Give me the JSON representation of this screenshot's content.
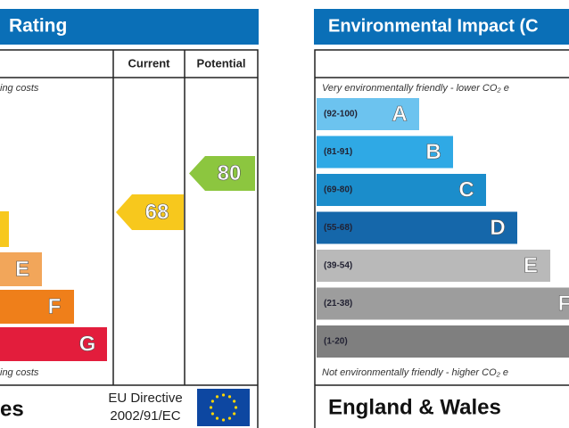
{
  "energy_panel": {
    "title": "Rating",
    "headers": [
      "Current",
      "Potential"
    ],
    "top_note": "ing costs",
    "bands": [
      {
        "letter": "E"
      },
      {
        "letter": "F"
      },
      {
        "letter": "G"
      }
    ],
    "current": 68,
    "potential": 80,
    "bottom_note": "ing costs",
    "region": "es",
    "directive": [
      "EU Directive",
      "2002/91/EC"
    ]
  },
  "environment_panel": {
    "title": "Environmental Impact (C",
    "top_note": "Very environmentally friendly - lower CO₂ e",
    "bands": [
      {
        "range": "(92-100)",
        "letter": "A"
      },
      {
        "range": "(81-91)",
        "letter": "B"
      },
      {
        "range": "(69-80)",
        "letter": "C"
      },
      {
        "range": "(55-68)",
        "letter": "D"
      },
      {
        "range": "(39-54)",
        "letter": "E"
      },
      {
        "range": "(21-38)",
        "letter": "F"
      },
      {
        "range": "(1-20)"
      }
    ],
    "bottom_note": "Not environmentally friendly - higher CO₂ e",
    "region": "England & Wales"
  }
}
